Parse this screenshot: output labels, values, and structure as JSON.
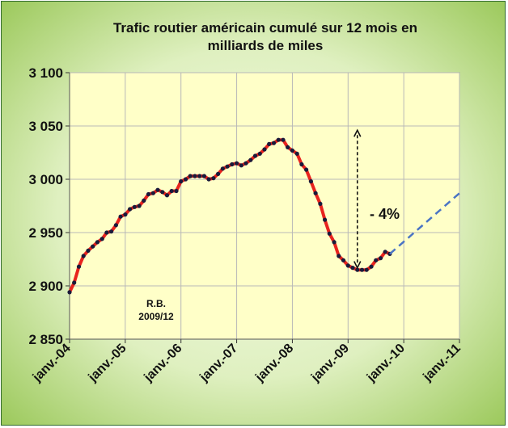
{
  "chart_data": {
    "type": "line",
    "title_line1": "Trafic routier américain cumulé sur 12 mois en",
    "title_line2": "milliards de miles",
    "ylim": [
      2850,
      3100
    ],
    "yticks": [
      2850,
      2900,
      2950,
      3000,
      3050,
      3100
    ],
    "ytick_labels": [
      "2 850",
      "2 900",
      "2 950",
      "3 000",
      "3 050",
      "3 100"
    ],
    "xticks": [
      "2004-01",
      "2005-01",
      "2006-01",
      "2007-01",
      "2008-01",
      "2009-01",
      "2010-01",
      "2011-01"
    ],
    "xtick_labels": [
      "janv.-04",
      "janv.-05",
      "janv.-06",
      "janv.-07",
      "janv.-08",
      "janv.-09",
      "janv.-10",
      "janv.-11"
    ],
    "xlim": [
      "2004-01",
      "2011-01"
    ],
    "grid": true,
    "annotations": {
      "signature": "R.B.",
      "signature_date": "2009/12",
      "change_label": "- 4%"
    },
    "series": [
      {
        "style": "solid",
        "color": "#e8231e",
        "marker_color": "#1a1a3a",
        "x": [
          "2004-01",
          "2004-02",
          "2004-03",
          "2004-04",
          "2004-05",
          "2004-06",
          "2004-07",
          "2004-08",
          "2004-09",
          "2004-10",
          "2004-11",
          "2004-12",
          "2005-01",
          "2005-02",
          "2005-03",
          "2005-04",
          "2005-05",
          "2005-06",
          "2005-07",
          "2005-08",
          "2005-09",
          "2005-10",
          "2005-11",
          "2005-12",
          "2006-01",
          "2006-02",
          "2006-03",
          "2006-04",
          "2006-05",
          "2006-06",
          "2006-07",
          "2006-08",
          "2006-09",
          "2006-10",
          "2006-11",
          "2006-12",
          "2007-01",
          "2007-02",
          "2007-03",
          "2007-04",
          "2007-05",
          "2007-06",
          "2007-07",
          "2007-08",
          "2007-09",
          "2007-10",
          "2007-11",
          "2007-12",
          "2008-01",
          "2008-02",
          "2008-03",
          "2008-04",
          "2008-05",
          "2008-06",
          "2008-07",
          "2008-08",
          "2008-09",
          "2008-10",
          "2008-11",
          "2008-12",
          "2009-01",
          "2009-02",
          "2009-03",
          "2009-04",
          "2009-05",
          "2009-06",
          "2009-07",
          "2009-08",
          "2009-09",
          "2009-10"
        ],
        "y": [
          2894,
          2903,
          2918,
          2928,
          2933,
          2937,
          2941,
          2944,
          2950,
          2951,
          2957,
          2965,
          2967,
          2972,
          2974,
          2975,
          2980,
          2986,
          2987,
          2990,
          2988,
          2985,
          2989,
          2989,
          2998,
          3000,
          3003,
          3003,
          3003,
          3003,
          3000,
          3001,
          3005,
          3010,
          3012,
          3014,
          3015,
          3013,
          3015,
          3018,
          3022,
          3024,
          3028,
          3033,
          3034,
          3037,
          3037,
          3030,
          3027,
          3024,
          3014,
          3009,
          2998,
          2987,
          2977,
          2962,
          2949,
          2941,
          2928,
          2924,
          2919,
          2917,
          2915,
          2915,
          2915,
          2918,
          2924,
          2926,
          2932,
          2930
        ]
      },
      {
        "style": "dashed",
        "color": "#4a74c4",
        "x": [
          "2009-10",
          "2011-01"
        ],
        "y": [
          2930,
          2987
        ]
      }
    ],
    "arrow": {
      "x": "2009-03",
      "y_from": 3046,
      "y_to": 2917
    }
  }
}
